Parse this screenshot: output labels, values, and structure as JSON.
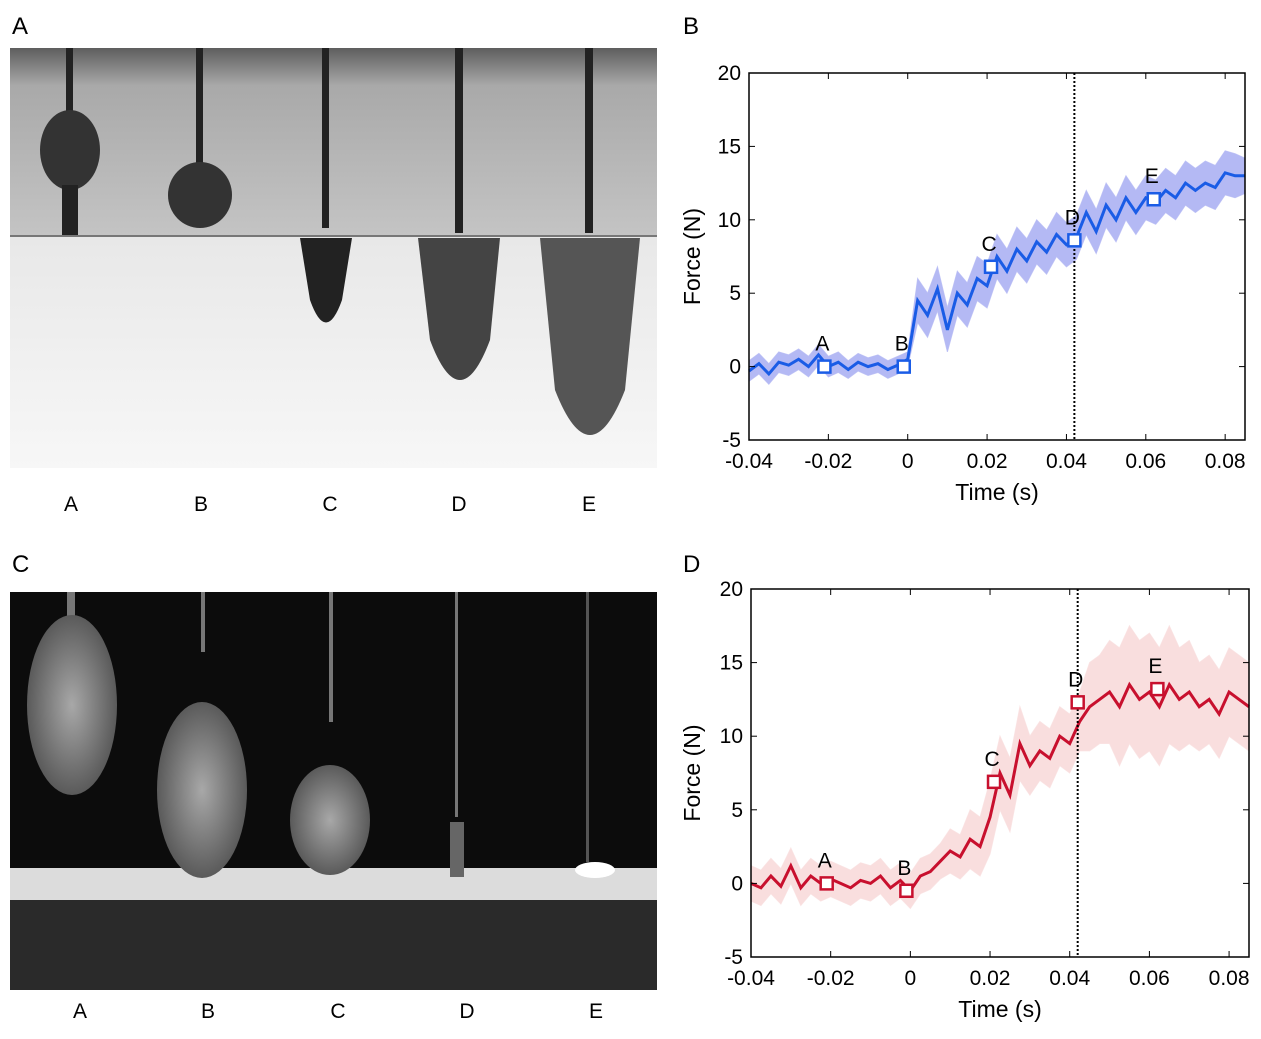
{
  "figure": {
    "panel_labels": [
      "A",
      "B",
      "C",
      "D"
    ],
    "photo_captions_top": [
      "A",
      "B",
      "C",
      "D",
      "E"
    ],
    "photo_captions_bottom": [
      "A",
      "B",
      "C",
      "D",
      "E"
    ]
  },
  "chart_data": [
    {
      "type": "line",
      "xlabel": "Time (s)",
      "ylabel": "Force (N)",
      "xlim": [
        -0.04,
        0.085
      ],
      "ylim": [
        -5,
        20
      ],
      "xticks": [
        -0.04,
        -0.02,
        0,
        0.02,
        0.04,
        0.06,
        0.08
      ],
      "yticks": [
        -5,
        0,
        5,
        10,
        15,
        20
      ],
      "color": "#1a5ce6",
      "band_color": "#b4b9f4",
      "vline": 0.042,
      "x": [
        -0.04,
        -0.0375,
        -0.035,
        -0.0325,
        -0.03,
        -0.0275,
        -0.025,
        -0.0225,
        -0.02,
        -0.0175,
        -0.015,
        -0.0125,
        -0.01,
        -0.0075,
        -0.005,
        -0.0025,
        0,
        0.0025,
        0.005,
        0.0075,
        0.01,
        0.0125,
        0.015,
        0.0175,
        0.02,
        0.0225,
        0.025,
        0.0275,
        0.03,
        0.0325,
        0.035,
        0.0375,
        0.04,
        0.0425,
        0.045,
        0.0475,
        0.05,
        0.0525,
        0.055,
        0.0575,
        0.06,
        0.0625,
        0.065,
        0.0675,
        0.07,
        0.0725,
        0.075,
        0.0775,
        0.08,
        0.0825,
        0.085
      ],
      "values": [
        -0.3,
        0.2,
        -0.5,
        0.3,
        0.1,
        0.5,
        0,
        0.8,
        0,
        0.3,
        -0.2,
        0.3,
        0,
        0.2,
        -0.2,
        0.1,
        0.5,
        4.5,
        3.5,
        5.3,
        2.5,
        5,
        4.2,
        6,
        5.5,
        7.5,
        6.5,
        8,
        7.2,
        8.5,
        7.8,
        9,
        8.3,
        8.8,
        10.5,
        9.2,
        11,
        10,
        11.5,
        10.5,
        11.5,
        11.2,
        12,
        11.5,
        12.5,
        12,
        12.5,
        12.2,
        13.2,
        13,
        13
      ],
      "error": [
        0.7,
        0.7,
        0.7,
        0.7,
        0.7,
        0.7,
        0.7,
        0.7,
        0.7,
        0.7,
        0.6,
        0.6,
        0.6,
        0.6,
        0.6,
        0.6,
        0.5,
        1.5,
        1.5,
        1.5,
        1.5,
        1.5,
        1.5,
        1.5,
        1.5,
        1.5,
        1.5,
        1.5,
        1.5,
        1.5,
        1.5,
        1.5,
        1.5,
        1.5,
        1.5,
        1.5,
        1.5,
        1.5,
        1.5,
        1.5,
        1.5,
        1.5,
        1.5,
        1.5,
        1.5,
        1.5,
        1.5,
        1.5,
        1.5,
        1.5,
        1.2
      ],
      "markers": {
        "x": [
          -0.021,
          -0.001,
          0.021,
          0.042,
          0.062
        ],
        "y": [
          0,
          0,
          6.8,
          8.6,
          11.4
        ],
        "labels": [
          "A",
          "B",
          "C",
          "D",
          "E"
        ]
      }
    },
    {
      "type": "line",
      "xlabel": "Time (s)",
      "ylabel": "Force (N)",
      "xlim": [
        -0.04,
        0.085
      ],
      "ylim": [
        -5,
        20
      ],
      "xticks": [
        -0.04,
        -0.02,
        0,
        0.02,
        0.04,
        0.06,
        0.08
      ],
      "yticks": [
        -5,
        0,
        5,
        10,
        15,
        20
      ],
      "color": "#c8102e",
      "band_color": "#f9dede",
      "vline": 0.042,
      "x": [
        -0.04,
        -0.0375,
        -0.035,
        -0.0325,
        -0.03,
        -0.0275,
        -0.025,
        -0.0225,
        -0.02,
        -0.0175,
        -0.015,
        -0.0125,
        -0.01,
        -0.0075,
        -0.005,
        -0.0025,
        0,
        0.0025,
        0.005,
        0.0075,
        0.01,
        0.0125,
        0.015,
        0.0175,
        0.02,
        0.0225,
        0.025,
        0.0275,
        0.03,
        0.0325,
        0.035,
        0.0375,
        0.04,
        0.0425,
        0.045,
        0.0475,
        0.05,
        0.0525,
        0.055,
        0.0575,
        0.06,
        0.0625,
        0.065,
        0.0675,
        0.07,
        0.0725,
        0.075,
        0.0775,
        0.08,
        0.0825,
        0.085
      ],
      "values": [
        0,
        -0.3,
        0.5,
        -0.2,
        1.2,
        -0.3,
        0.5,
        0,
        0.3,
        0,
        -0.3,
        0.2,
        0,
        0.5,
        -0.3,
        0.2,
        -0.5,
        0.5,
        0.8,
        1.5,
        2.2,
        1.8,
        3,
        2.5,
        4.5,
        7.5,
        6,
        9.5,
        8,
        9,
        8.5,
        10,
        9.5,
        11,
        12,
        12.5,
        13,
        12,
        13.5,
        12.5,
        13,
        12,
        13.5,
        12.5,
        13,
        12,
        12.5,
        11.5,
        13,
        12.5,
        12
      ],
      "error": [
        1.2,
        1.2,
        1.2,
        1.2,
        1.2,
        1.2,
        1.2,
        1.2,
        1.2,
        1.2,
        1.2,
        1.2,
        1.2,
        1.2,
        1.2,
        1.2,
        1.2,
        1.2,
        1.2,
        1.2,
        1.5,
        1.5,
        2,
        2,
        2.5,
        2.5,
        2.5,
        2.5,
        2,
        2,
        2,
        2,
        2,
        2,
        3,
        3,
        3.5,
        4,
        4,
        4,
        4,
        4,
        4,
        3.5,
        3.5,
        3,
        3,
        3,
        3,
        3,
        3
      ],
      "markers": {
        "x": [
          -0.021,
          -0.001,
          0.021,
          0.042,
          0.062
        ],
        "y": [
          0,
          -0.5,
          6.9,
          12.3,
          13.2
        ],
        "labels": [
          "A",
          "B",
          "C",
          "D",
          "E"
        ]
      }
    }
  ]
}
